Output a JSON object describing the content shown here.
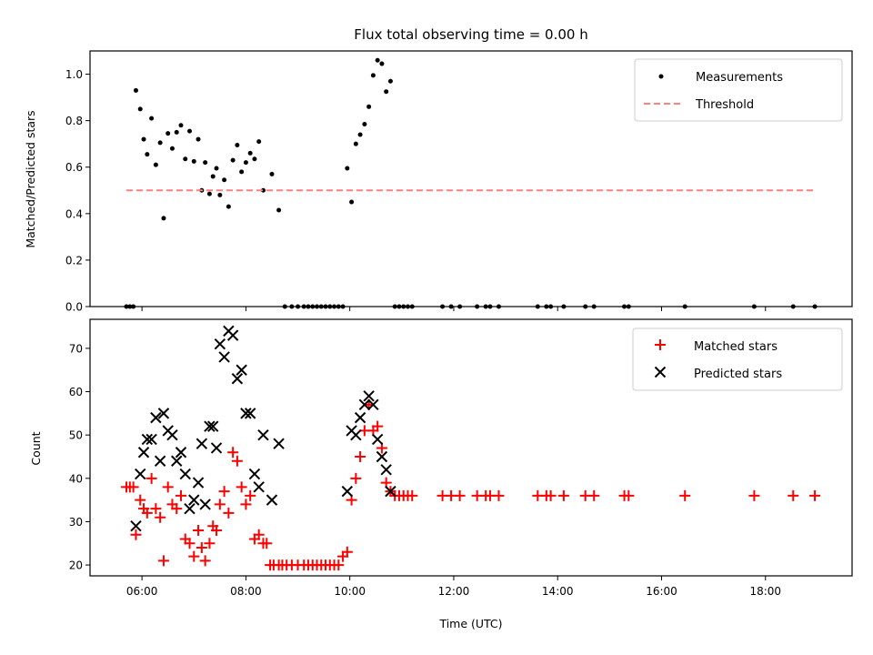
{
  "chart_data": [
    {
      "type": "scatter",
      "title": "Flux total observing time = 0.00 h",
      "xlabel": "",
      "ylabel": "Matched/Predicted stars",
      "xlim": [
        "05:00",
        "19:40"
      ],
      "ylim": [
        0,
        1.1
      ],
      "yticks": [
        "0.0",
        "0.2",
        "0.4",
        "0.6",
        "0.8",
        "1.0"
      ],
      "legend_placement": "upper right",
      "colors": {
        "measurements": "#000000",
        "threshold": "#ff7f7f"
      },
      "series": [
        {
          "name": "Measurements",
          "marker": "dot",
          "points": [
            [
              "05:42",
              0
            ],
            [
              "05:46",
              0
            ],
            [
              "05:50",
              0
            ],
            [
              "05:53",
              0.93
            ],
            [
              "05:58",
              0.85
            ],
            [
              "06:02",
              0.72
            ],
            [
              "06:06",
              0.655
            ],
            [
              "06:11",
              0.81
            ],
            [
              "06:16",
              0.61
            ],
            [
              "06:21",
              0.705
            ],
            [
              "06:25",
              0.38
            ],
            [
              "06:30",
              0.745
            ],
            [
              "06:35",
              0.68
            ],
            [
              "06:40",
              0.75
            ],
            [
              "06:45",
              0.78
            ],
            [
              "06:50",
              0.635
            ],
            [
              "06:55",
              0.755
            ],
            [
              "07:00",
              0.625
            ],
            [
              "07:05",
              0.72
            ],
            [
              "07:09",
              0.5
            ],
            [
              "07:13",
              0.62
            ],
            [
              "07:18",
              0.485
            ],
            [
              "07:22",
              0.56
            ],
            [
              "07:26",
              0.595
            ],
            [
              "07:30",
              0.48
            ],
            [
              "07:35",
              0.545
            ],
            [
              "07:40",
              0.43
            ],
            [
              "07:45",
              0.63
            ],
            [
              "07:50",
              0.695
            ],
            [
              "07:55",
              0.58
            ],
            [
              "08:00",
              0.62
            ],
            [
              "08:05",
              0.66
            ],
            [
              "08:10",
              0.635
            ],
            [
              "08:15",
              0.71
            ],
            [
              "08:20",
              0.5
            ],
            [
              "08:30",
              0.57
            ],
            [
              "08:38",
              0.415
            ],
            [
              "08:45",
              0
            ],
            [
              "08:53",
              0
            ],
            [
              "09:00",
              0
            ],
            [
              "09:07",
              0
            ],
            [
              "09:12",
              0
            ],
            [
              "09:17",
              0
            ],
            [
              "09:22",
              0
            ],
            [
              "09:27",
              0
            ],
            [
              "09:32",
              0
            ],
            [
              "09:37",
              0
            ],
            [
              "09:42",
              0
            ],
            [
              "09:47",
              0
            ],
            [
              "09:52",
              0
            ],
            [
              "09:57",
              0.595
            ],
            [
              "10:02",
              0.45
            ],
            [
              "10:07",
              0.7
            ],
            [
              "10:12",
              0.74
            ],
            [
              "10:17",
              0.785
            ],
            [
              "10:22",
              0.86
            ],
            [
              "10:27",
              0.995
            ],
            [
              "10:32",
              1.06
            ],
            [
              "10:37",
              1.045
            ],
            [
              "10:42",
              0.925
            ],
            [
              "10:47",
              0.97
            ],
            [
              "10:52",
              0
            ],
            [
              "10:57",
              0
            ],
            [
              "11:02",
              0
            ],
            [
              "11:07",
              0
            ],
            [
              "11:12",
              0
            ],
            [
              "11:47",
              0
            ],
            [
              "11:57",
              0
            ],
            [
              "12:07",
              0
            ],
            [
              "12:27",
              0
            ],
            [
              "12:37",
              0
            ],
            [
              "12:42",
              0
            ],
            [
              "12:52",
              0
            ],
            [
              "13:37",
              0
            ],
            [
              "13:47",
              0
            ],
            [
              "13:52",
              0
            ],
            [
              "14:07",
              0
            ],
            [
              "14:32",
              0
            ],
            [
              "14:42",
              0
            ],
            [
              "15:17",
              0
            ],
            [
              "15:22",
              0
            ],
            [
              "16:27",
              0
            ],
            [
              "17:47",
              0
            ],
            [
              "18:32",
              0
            ],
            [
              "18:57",
              0
            ]
          ]
        },
        {
          "name": "Threshold",
          "style": "dashed",
          "x": [
            "05:42",
            "18:57"
          ],
          "y": [
            0.5,
            0.5
          ]
        }
      ]
    },
    {
      "type": "scatter",
      "title": "",
      "xlabel": "Time (UTC)",
      "ylabel": "Count",
      "xlim": [
        "05:00",
        "19:40"
      ],
      "ylim": [
        17.5,
        76.7
      ],
      "xticks": [
        "06:00",
        "08:00",
        "10:00",
        "12:00",
        "14:00",
        "16:00",
        "18:00"
      ],
      "yticks": [
        "20",
        "30",
        "40",
        "50",
        "60",
        "70"
      ],
      "legend_placement": "upper right",
      "colors": {
        "matched": "#ff0000",
        "predicted": "#000000"
      },
      "series": [
        {
          "name": "Matched stars",
          "marker": "plus",
          "points": [
            [
              "05:42",
              38
            ],
            [
              "05:46",
              38
            ],
            [
              "05:50",
              38
            ],
            [
              "05:53",
              27
            ],
            [
              "05:58",
              35
            ],
            [
              "06:02",
              33
            ],
            [
              "06:06",
              32
            ],
            [
              "06:11",
              40
            ],
            [
              "06:16",
              33
            ],
            [
              "06:21",
              31
            ],
            [
              "06:25",
              21
            ],
            [
              "06:30",
              38
            ],
            [
              "06:35",
              34
            ],
            [
              "06:40",
              33
            ],
            [
              "06:45",
              36
            ],
            [
              "06:50",
              26
            ],
            [
              "06:55",
              25
            ],
            [
              "07:00",
              22
            ],
            [
              "07:05",
              28
            ],
            [
              "07:09",
              24
            ],
            [
              "07:13",
              21
            ],
            [
              "07:18",
              25
            ],
            [
              "07:22",
              29
            ],
            [
              "07:26",
              28
            ],
            [
              "07:30",
              34
            ],
            [
              "07:35",
              37
            ],
            [
              "07:40",
              32
            ],
            [
              "07:45",
              46
            ],
            [
              "07:50",
              44
            ],
            [
              "07:55",
              38
            ],
            [
              "08:00",
              34
            ],
            [
              "08:05",
              36
            ],
            [
              "08:10",
              26
            ],
            [
              "08:15",
              27
            ],
            [
              "08:20",
              25
            ],
            [
              "08:24",
              25
            ],
            [
              "08:28",
              20
            ],
            [
              "08:32",
              20
            ],
            [
              "08:38",
              20
            ],
            [
              "08:42",
              20
            ],
            [
              "08:47",
              20
            ],
            [
              "08:53",
              20
            ],
            [
              "09:00",
              20
            ],
            [
              "09:07",
              20
            ],
            [
              "09:12",
              20
            ],
            [
              "09:17",
              20
            ],
            [
              "09:22",
              20
            ],
            [
              "09:27",
              20
            ],
            [
              "09:32",
              20
            ],
            [
              "09:37",
              20
            ],
            [
              "09:42",
              20
            ],
            [
              "09:47",
              20
            ],
            [
              "09:52",
              22
            ],
            [
              "09:57",
              23
            ],
            [
              "10:02",
              35
            ],
            [
              "10:07",
              40
            ],
            [
              "10:12",
              45
            ],
            [
              "10:17",
              51
            ],
            [
              "10:22",
              57
            ],
            [
              "10:27",
              51
            ],
            [
              "10:32",
              52
            ],
            [
              "10:37",
              47
            ],
            [
              "10:42",
              39
            ],
            [
              "10:47",
              37
            ],
            [
              "10:52",
              36
            ],
            [
              "10:57",
              36
            ],
            [
              "11:02",
              36
            ],
            [
              "11:07",
              36
            ],
            [
              "11:12",
              36
            ],
            [
              "11:47",
              36
            ],
            [
              "11:57",
              36
            ],
            [
              "12:07",
              36
            ],
            [
              "12:27",
              36
            ],
            [
              "12:37",
              36
            ],
            [
              "12:42",
              36
            ],
            [
              "12:52",
              36
            ],
            [
              "13:37",
              36
            ],
            [
              "13:47",
              36
            ],
            [
              "13:52",
              36
            ],
            [
              "14:07",
              36
            ],
            [
              "14:32",
              36
            ],
            [
              "14:42",
              36
            ],
            [
              "15:17",
              36
            ],
            [
              "15:22",
              36
            ],
            [
              "16:27",
              36
            ],
            [
              "17:47",
              36
            ],
            [
              "18:32",
              36
            ],
            [
              "18:57",
              36
            ]
          ]
        },
        {
          "name": "Predicted stars",
          "marker": "x",
          "points": [
            [
              "05:53",
              29
            ],
            [
              "05:58",
              41
            ],
            [
              "06:02",
              46
            ],
            [
              "06:06",
              49
            ],
            [
              "06:11",
              49
            ],
            [
              "06:16",
              54
            ],
            [
              "06:21",
              44
            ],
            [
              "06:25",
              55
            ],
            [
              "06:30",
              51
            ],
            [
              "06:35",
              50
            ],
            [
              "06:40",
              44
            ],
            [
              "06:45",
              46
            ],
            [
              "06:50",
              41
            ],
            [
              "06:55",
              33
            ],
            [
              "07:00",
              35
            ],
            [
              "07:05",
              39
            ],
            [
              "07:09",
              48
            ],
            [
              "07:13",
              34
            ],
            [
              "07:18",
              52
            ],
            [
              "07:22",
              52
            ],
            [
              "07:26",
              47
            ],
            [
              "07:30",
              71
            ],
            [
              "07:35",
              68
            ],
            [
              "07:40",
              74
            ],
            [
              "07:45",
              73
            ],
            [
              "07:50",
              63
            ],
            [
              "07:55",
              65
            ],
            [
              "08:00",
              55
            ],
            [
              "08:05",
              55
            ],
            [
              "08:10",
              41
            ],
            [
              "08:15",
              38
            ],
            [
              "08:20",
              50
            ],
            [
              "08:30",
              35
            ],
            [
              "08:38",
              48
            ],
            [
              "09:57",
              37
            ],
            [
              "10:02",
              51
            ],
            [
              "10:07",
              50
            ],
            [
              "10:12",
              54
            ],
            [
              "10:17",
              57
            ],
            [
              "10:22",
              59
            ],
            [
              "10:27",
              57
            ],
            [
              "10:32",
              49
            ],
            [
              "10:37",
              45
            ],
            [
              "10:42",
              42
            ],
            [
              "10:47",
              37
            ]
          ]
        }
      ]
    }
  ]
}
